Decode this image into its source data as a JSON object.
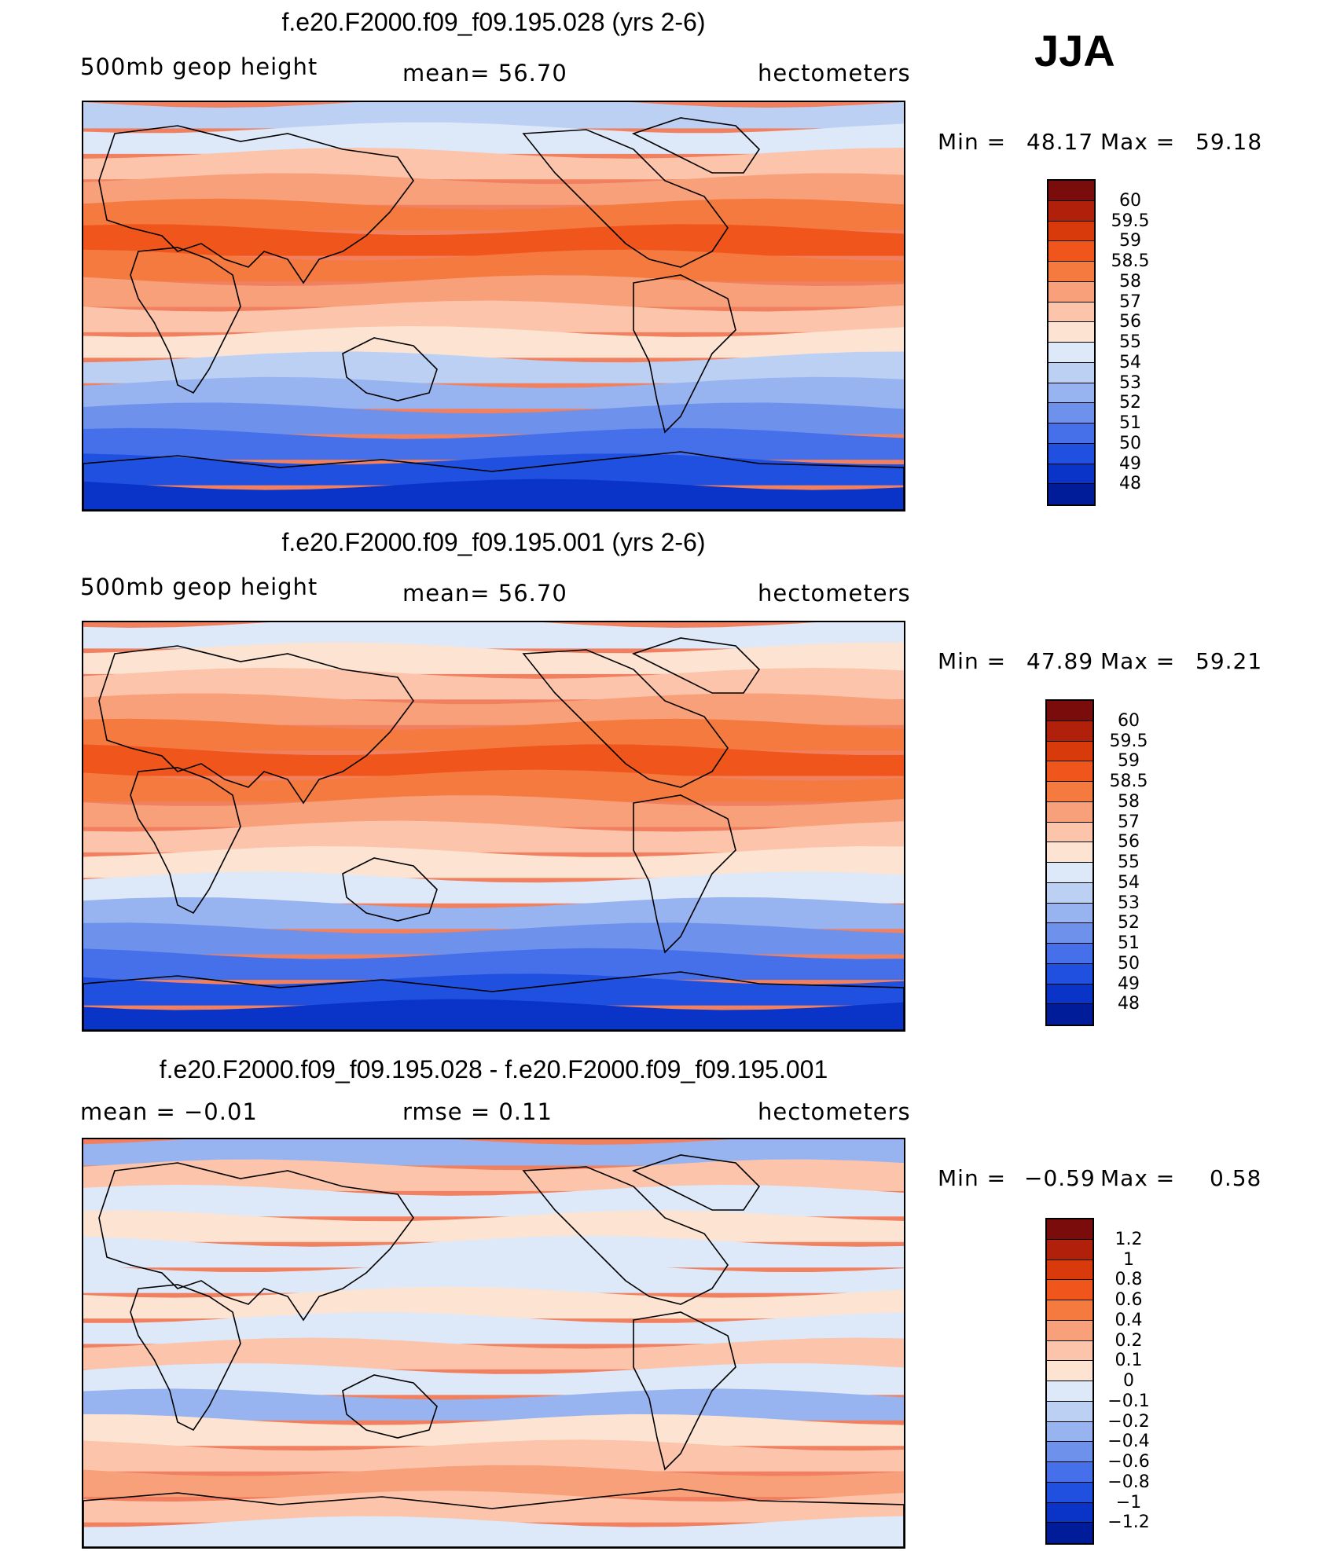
{
  "season": "JJA",
  "panels": [
    {
      "title": "f.e20.F2000.f09_f09.195.028 (yrs 2-6)",
      "left_label": "500mb  geop  height",
      "center_label": "mean=   56.70",
      "right_label": "hectometers",
      "min_label": "Min  =",
      "min_value": "48.17",
      "max_label": "Max  =",
      "max_value": "59.18",
      "colorbar": {
        "colors": [
          "#7a0c0c",
          "#b0200a",
          "#d83a0c",
          "#f0561c",
          "#f47a40",
          "#f8a07a",
          "#fcc4aa",
          "#fde4d2",
          "#dde8f8",
          "#bcd0f4",
          "#97b4f0",
          "#6e92ec",
          "#4570ea",
          "#2050e0",
          "#0a34c8",
          "#001c98"
        ],
        "labels": [
          "60",
          "59.5",
          "59",
          "58.5",
          "58",
          "57",
          "56",
          "55",
          "54",
          "53",
          "52",
          "51",
          "50",
          "49",
          "48"
        ]
      },
      "bands": [
        "#bcd0f4",
        "#dde8f8",
        "#fcc4aa",
        "#f8a07a",
        "#f47a40",
        "#f0561c",
        "#f47a40",
        "#f8a07a",
        "#fcc4aa",
        "#fde4d2",
        "#bcd0f4",
        "#97b4f0",
        "#6e92ec",
        "#4570ea",
        "#2050e0",
        "#0a34c8"
      ]
    },
    {
      "title": "f.e20.F2000.f09_f09.195.001 (yrs 2-6)",
      "left_label": "500mb  geop  height",
      "center_label": "mean=   56.70",
      "right_label": "hectometers",
      "min_label": "Min  =",
      "min_value": "47.89",
      "max_label": "Max  =",
      "max_value": "59.21",
      "colorbar": {
        "colors": [
          "#7a0c0c",
          "#b0200a",
          "#d83a0c",
          "#f0561c",
          "#f47a40",
          "#f8a07a",
          "#fcc4aa",
          "#fde4d2",
          "#dde8f8",
          "#bcd0f4",
          "#97b4f0",
          "#6e92ec",
          "#4570ea",
          "#2050e0",
          "#0a34c8",
          "#001c98"
        ],
        "labels": [
          "60",
          "59.5",
          "59",
          "58.5",
          "58",
          "57",
          "56",
          "55",
          "54",
          "53",
          "52",
          "51",
          "50",
          "49",
          "48"
        ]
      },
      "bands": [
        "#dde8f8",
        "#fde4d2",
        "#fcc4aa",
        "#f8a07a",
        "#f47a40",
        "#f0561c",
        "#f47a40",
        "#f8a07a",
        "#fcc4aa",
        "#fde4d2",
        "#dde8f8",
        "#97b4f0",
        "#6e92ec",
        "#4570ea",
        "#2050e0",
        "#0a34c8"
      ]
    },
    {
      "title": "f.e20.F2000.f09_f09.195.028 - f.e20.F2000.f09_f09.195.001",
      "left_label": "mean  =    −0.01",
      "center_label": "rmse  =     0.11",
      "right_label": "hectometers",
      "min_label": "Min  =",
      "min_value": "−0.59",
      "max_label": "Max  =",
      "max_value": "0.58",
      "colorbar": {
        "colors": [
          "#7a0c0c",
          "#b0200a",
          "#d83a0c",
          "#f0561c",
          "#f47a40",
          "#f8a07a",
          "#fcc4aa",
          "#fde4d2",
          "#dde8f8",
          "#bcd0f4",
          "#97b4f0",
          "#6e92ec",
          "#4570ea",
          "#2050e0",
          "#0a34c8",
          "#001c98"
        ],
        "labels": [
          "1.2",
          "1",
          "0.8",
          "0.6",
          "0.4",
          "0.2",
          "0.1",
          "0",
          "−0.1",
          "−0.2",
          "−0.4",
          "−0.6",
          "−0.8",
          "−1",
          "−1.2"
        ]
      },
      "bands": [
        "#97b4f0",
        "#fcc4aa",
        "#dde8f8",
        "#fde4d2",
        "#dde8f8",
        "#dde8f8",
        "#fde4d2",
        "#dde8f8",
        "#fcc4aa",
        "#dde8f8",
        "#97b4f0",
        "#fde4d2",
        "#fcc4aa",
        "#f8a07a",
        "#fcc4aa",
        "#dde8f8"
      ]
    }
  ]
}
